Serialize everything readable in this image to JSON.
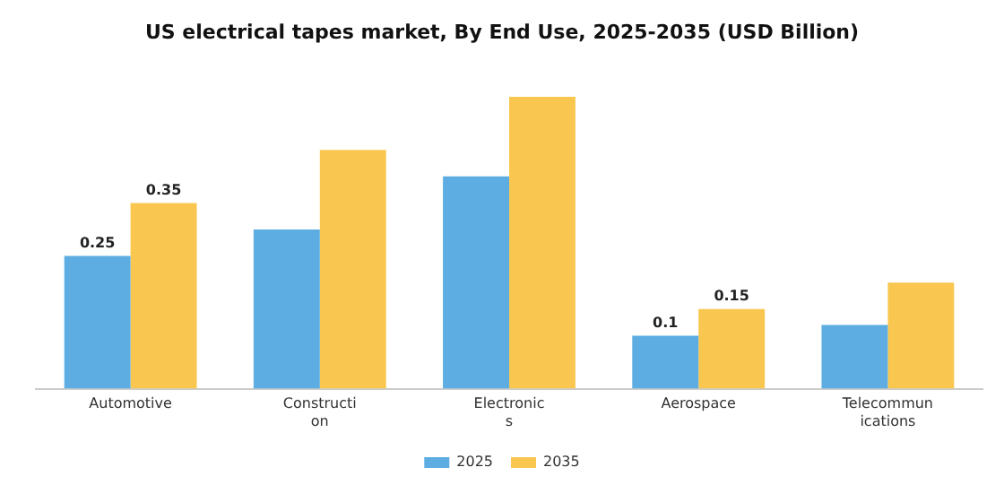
{
  "chart_data": {
    "type": "bar",
    "title": "US electrical tapes market, By End Use, 2025-2035 (USD Billion)",
    "categories": [
      "Automotive",
      "Construction",
      "Electronics",
      "Aerospace",
      "Telecommunications"
    ],
    "series": [
      {
        "name": "2025",
        "color": "#5dade2",
        "values": [
          0.25,
          0.3,
          0.4,
          0.1,
          0.12
        ],
        "value_labels": [
          "0.25",
          null,
          null,
          "0.1",
          null
        ]
      },
      {
        "name": "2035",
        "color": "#f9c74f",
        "values": [
          0.35,
          0.45,
          0.55,
          0.15,
          0.2
        ],
        "value_labels": [
          "0.35",
          null,
          null,
          "0.15",
          null
        ]
      }
    ],
    "legend": "bottom",
    "grid": false
  }
}
